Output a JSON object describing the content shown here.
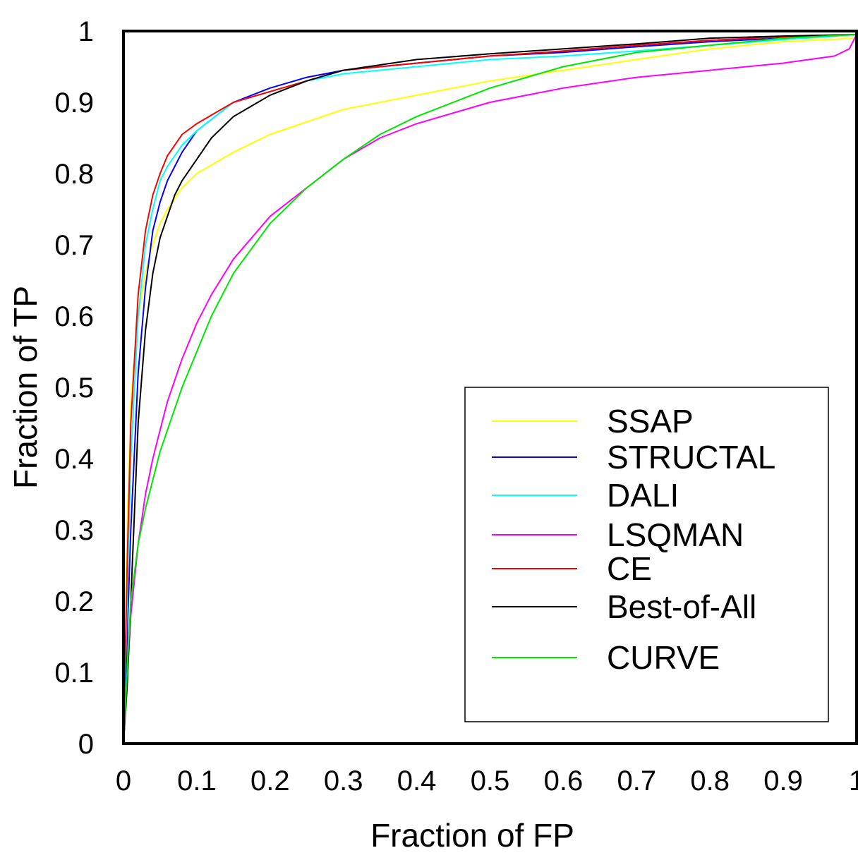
{
  "chart_data": {
    "type": "line",
    "xlabel": "Fraction of FP",
    "ylabel": "Fraction of TP",
    "xlim": [
      0,
      1
    ],
    "ylim": [
      0,
      1
    ],
    "x_ticks": [
      "0",
      "0.1",
      "0.2",
      "0.3",
      "0.4",
      "0.5",
      "0.6",
      "0.7",
      "0.8",
      "0.9",
      "1"
    ],
    "y_ticks": [
      "0",
      "0.1",
      "0.2",
      "0.3",
      "0.4",
      "0.5",
      "0.6",
      "0.7",
      "0.8",
      "0.9",
      "1"
    ],
    "grid": false,
    "legend_position": "lower-right",
    "series": [
      {
        "name": "SSAP",
        "color": "#ffff00",
        "x": [
          0,
          0.005,
          0.01,
          0.02,
          0.03,
          0.04,
          0.05,
          0.06,
          0.08,
          0.1,
          0.15,
          0.2,
          0.3,
          0.4,
          0.5,
          0.6,
          0.7,
          0.8,
          0.9,
          1.0
        ],
        "y": [
          0,
          0.3,
          0.48,
          0.6,
          0.66,
          0.7,
          0.73,
          0.75,
          0.78,
          0.8,
          0.83,
          0.855,
          0.89,
          0.91,
          0.93,
          0.945,
          0.96,
          0.975,
          0.985,
          0.99
        ]
      },
      {
        "name": "STRUCTAL",
        "color": "#0000ff",
        "x": [
          0,
          0.005,
          0.01,
          0.02,
          0.03,
          0.04,
          0.05,
          0.06,
          0.08,
          0.1,
          0.15,
          0.2,
          0.25,
          0.3,
          0.4,
          0.5,
          0.6,
          0.7,
          0.8,
          0.9,
          1.0
        ],
        "y": [
          0,
          0.15,
          0.3,
          0.52,
          0.64,
          0.72,
          0.76,
          0.79,
          0.83,
          0.86,
          0.9,
          0.92,
          0.935,
          0.945,
          0.955,
          0.965,
          0.97,
          0.978,
          0.985,
          0.99,
          0.995
        ]
      },
      {
        "name": "DALI",
        "color": "#00ffff",
        "x": [
          0,
          0.005,
          0.01,
          0.02,
          0.03,
          0.04,
          0.05,
          0.06,
          0.08,
          0.1,
          0.15,
          0.2,
          0.25,
          0.3,
          0.4,
          0.5,
          0.6,
          0.7,
          0.8,
          0.9,
          1.0
        ],
        "y": [
          0,
          0.2,
          0.4,
          0.6,
          0.7,
          0.75,
          0.79,
          0.81,
          0.84,
          0.86,
          0.9,
          0.915,
          0.93,
          0.94,
          0.95,
          0.96,
          0.965,
          0.972,
          0.98,
          0.988,
          0.995
        ]
      },
      {
        "name": "LSQMAN",
        "color": "#ff00ff",
        "x": [
          0,
          0.01,
          0.02,
          0.03,
          0.04,
          0.05,
          0.06,
          0.08,
          0.1,
          0.12,
          0.15,
          0.2,
          0.25,
          0.3,
          0.35,
          0.4,
          0.5,
          0.6,
          0.7,
          0.8,
          0.9,
          0.97,
          0.99,
          1.0
        ],
        "y": [
          0,
          0.18,
          0.28,
          0.35,
          0.4,
          0.44,
          0.48,
          0.54,
          0.59,
          0.63,
          0.68,
          0.74,
          0.78,
          0.82,
          0.85,
          0.87,
          0.9,
          0.92,
          0.935,
          0.945,
          0.955,
          0.965,
          0.975,
          0.995
        ]
      },
      {
        "name": "CE",
        "color": "#ff0000",
        "x": [
          0,
          0.005,
          0.01,
          0.02,
          0.03,
          0.04,
          0.05,
          0.06,
          0.08,
          0.1,
          0.15,
          0.2,
          0.25,
          0.3,
          0.4,
          0.5,
          0.6,
          0.7,
          0.8,
          0.9,
          1.0
        ],
        "y": [
          0,
          0.25,
          0.45,
          0.63,
          0.72,
          0.77,
          0.8,
          0.825,
          0.855,
          0.87,
          0.9,
          0.915,
          0.93,
          0.945,
          0.955,
          0.965,
          0.972,
          0.98,
          0.987,
          0.992,
          0.995
        ]
      },
      {
        "name": "Best-of-All",
        "color": "#000000",
        "x": [
          0,
          0.005,
          0.01,
          0.02,
          0.03,
          0.04,
          0.05,
          0.06,
          0.07,
          0.08,
          0.1,
          0.12,
          0.15,
          0.2,
          0.25,
          0.3,
          0.4,
          0.5,
          0.6,
          0.7,
          0.8,
          0.9,
          1.0
        ],
        "y": [
          0,
          0.08,
          0.2,
          0.45,
          0.58,
          0.66,
          0.71,
          0.74,
          0.77,
          0.79,
          0.82,
          0.85,
          0.88,
          0.91,
          0.93,
          0.945,
          0.96,
          0.968,
          0.975,
          0.982,
          0.99,
          0.993,
          0.995
        ]
      },
      {
        "name": "CURVE",
        "color": "#00e600",
        "x": [
          0,
          0.005,
          0.01,
          0.02,
          0.03,
          0.04,
          0.05,
          0.06,
          0.08,
          0.1,
          0.12,
          0.15,
          0.2,
          0.25,
          0.3,
          0.35,
          0.4,
          0.5,
          0.6,
          0.7,
          0.8,
          0.9,
          1.0
        ],
        "y": [
          0,
          0.1,
          0.2,
          0.28,
          0.33,
          0.37,
          0.41,
          0.44,
          0.5,
          0.55,
          0.6,
          0.66,
          0.73,
          0.78,
          0.82,
          0.855,
          0.88,
          0.92,
          0.95,
          0.97,
          0.98,
          0.99,
          0.995
        ]
      }
    ]
  }
}
